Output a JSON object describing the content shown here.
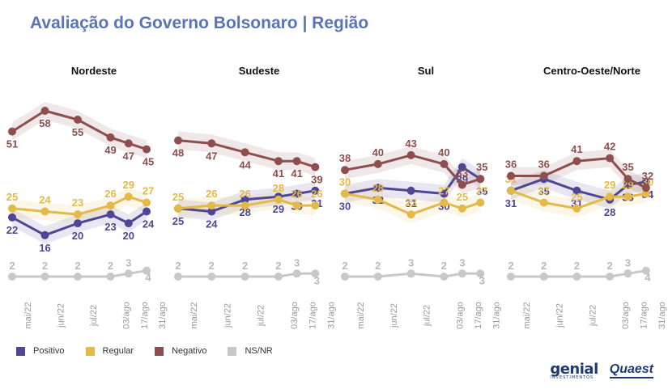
{
  "title": "Avaliação do Governo Bolsonaro | Região",
  "colors": {
    "positivo": "#4f4694",
    "regular": "#e3b948",
    "negativo": "#8e4e4e",
    "nsnr": "#c8c8c8"
  },
  "legend": [
    {
      "key": "positivo",
      "label": "Positivo"
    },
    {
      "key": "regular",
      "label": "Regular"
    },
    {
      "key": "negativo",
      "label": "Negativo"
    },
    {
      "key": "nsnr",
      "label": "NS/NR"
    }
  ],
  "logos": {
    "genial": "genial",
    "genial_sub": "INVESTIMENTOS",
    "quaest": "Quaest"
  },
  "chart_data": [
    {
      "type": "line",
      "title": "Nordeste",
      "categories": [
        "mai/22",
        "jun/22",
        "jul/22",
        "03/ago",
        "17/ago",
        "31/ago"
      ],
      "series": [
        {
          "name": "Positivo",
          "values": [
            22,
            16,
            20,
            23,
            20,
            24
          ]
        },
        {
          "name": "Regular",
          "values": [
            25,
            24,
            23,
            26,
            29,
            27
          ]
        },
        {
          "name": "Negativo",
          "values": [
            51,
            58,
            55,
            49,
            47,
            45
          ]
        },
        {
          "name": "NS/NR",
          "values": [
            2,
            2,
            2,
            2,
            3,
            4
          ]
        }
      ]
    },
    {
      "type": "line",
      "title": "Sudeste",
      "categories": [
        "mai/22",
        "jun/22",
        "jul/22",
        "03/ago",
        "17/ago",
        "31/ago"
      ],
      "series": [
        {
          "name": "Positivo",
          "values": [
            25,
            24,
            28,
            29,
            30,
            31
          ]
        },
        {
          "name": "Regular",
          "values": [
            25,
            26,
            26,
            28,
            26,
            26
          ]
        },
        {
          "name": "Negativo",
          "values": [
            48,
            47,
            44,
            41,
            41,
            39
          ]
        },
        {
          "name": "NS/NR",
          "values": [
            2,
            2,
            2,
            2,
            3,
            3
          ]
        }
      ]
    },
    {
      "type": "line",
      "title": "Sul",
      "categories": [
        "mai/22",
        "jun/22",
        "jul/22",
        "03/ago",
        "17/ago",
        "31/ago"
      ],
      "series": [
        {
          "name": "Positivo",
          "values": [
            30,
            32,
            31,
            30,
            39,
            35
          ]
        },
        {
          "name": "Regular",
          "values": [
            30,
            28,
            23,
            27,
            25,
            27
          ]
        },
        {
          "name": "Negativo",
          "values": [
            38,
            40,
            43,
            40,
            33,
            35
          ]
        },
        {
          "name": "NS/NR",
          "values": [
            2,
            2,
            3,
            2,
            3,
            3
          ]
        }
      ]
    },
    {
      "type": "line",
      "title": "Centro-Oeste/Norte",
      "categories": [
        "mai/22",
        "jun/22",
        "jul/22",
        "03/ago",
        "17/ago",
        "31/ago"
      ],
      "series": [
        {
          "name": "Positivo",
          "values": [
            31,
            35,
            31,
            28,
            33,
            34
          ]
        },
        {
          "name": "Regular",
          "values": [
            31,
            27,
            25,
            29,
            29,
            30
          ]
        },
        {
          "name": "Negativo",
          "values": [
            36,
            36,
            41,
            42,
            35,
            32
          ]
        },
        {
          "name": "NS/NR",
          "values": [
            2,
            2,
            2,
            2,
            3,
            4
          ]
        }
      ]
    }
  ]
}
